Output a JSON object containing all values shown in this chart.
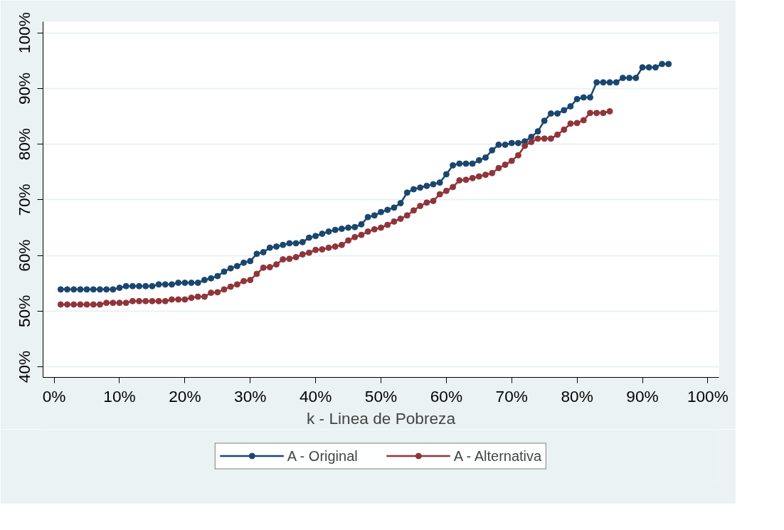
{
  "chart_data": {
    "type": "line",
    "xlabel": "k - Linea de Pobreza",
    "marker": "circle",
    "line_style": "solid",
    "grid": "y",
    "legend": "bottom",
    "xlim": [
      -1.7,
      101.7
    ],
    "ylim": [
      38.1,
      102
    ],
    "xticks": [
      {
        "value": 0,
        "label": "0%"
      },
      {
        "value": 10,
        "label": "10%"
      },
      {
        "value": 20,
        "label": "20%"
      },
      {
        "value": 30,
        "label": "30%"
      },
      {
        "value": 40,
        "label": "40%"
      },
      {
        "value": 50,
        "label": "50%"
      },
      {
        "value": 60,
        "label": "60%"
      },
      {
        "value": 70,
        "label": "70%"
      },
      {
        "value": 80,
        "label": "80%"
      },
      {
        "value": 90,
        "label": "90%"
      },
      {
        "value": 100,
        "label": "100%"
      }
    ],
    "yticks": [
      {
        "value": 40,
        "label": "40%"
      },
      {
        "value": 50,
        "label": "50%"
      },
      {
        "value": 60,
        "label": "60%"
      },
      {
        "value": 70,
        "label": "70%"
      },
      {
        "value": 80,
        "label": "80%"
      },
      {
        "value": 90,
        "label": "90%"
      },
      {
        "value": 100,
        "label": "100%"
      }
    ],
    "series": [
      {
        "name": "A - Original",
        "color": "#1a476f",
        "x": [
          1,
          2,
          3,
          4,
          5,
          6,
          7,
          8,
          9,
          10,
          11,
          12,
          13,
          14,
          15,
          16,
          17,
          18,
          19,
          20,
          21,
          22,
          23,
          24,
          25,
          26,
          27,
          28,
          29,
          30,
          31,
          32,
          33,
          34,
          35,
          36,
          37,
          38,
          39,
          40,
          41,
          42,
          43,
          44,
          45,
          46,
          47,
          48,
          49,
          50,
          51,
          52,
          53,
          54,
          55,
          56,
          57,
          58,
          59,
          60,
          61,
          62,
          63,
          64,
          65,
          66,
          67,
          68,
          69,
          70,
          71,
          72,
          73,
          74,
          75,
          76,
          77,
          78,
          79,
          80,
          81,
          82,
          83,
          84,
          85,
          86,
          87,
          88,
          89,
          90,
          91,
          92,
          93,
          94
        ],
        "values": [
          53.9,
          53.9,
          53.9,
          53.9,
          53.9,
          53.9,
          53.9,
          53.9,
          53.9,
          54.2,
          54.5,
          54.5,
          54.5,
          54.5,
          54.5,
          54.8,
          54.8,
          54.8,
          55.1,
          55.1,
          55.1,
          55.1,
          55.6,
          55.9,
          56.3,
          57.1,
          57.7,
          58.1,
          58.7,
          59.0,
          60.3,
          60.6,
          61.4,
          61.6,
          61.9,
          62.2,
          62.2,
          62.4,
          63.2,
          63.5,
          63.9,
          64.3,
          64.6,
          64.8,
          65.0,
          65.1,
          65.6,
          66.9,
          67.2,
          67.8,
          68.2,
          68.6,
          69.4,
          71.3,
          71.9,
          72.2,
          72.5,
          72.8,
          73.1,
          74.6,
          76.2,
          76.5,
          76.5,
          76.5,
          77.1,
          77.6,
          78.9,
          79.9,
          79.9,
          80.2,
          80.2,
          80.5,
          81.3,
          82.3,
          84.2,
          85.5,
          85.5,
          86.1,
          86.8,
          88.1,
          88.4,
          88.4,
          91.1,
          91.1,
          91.1,
          91.1,
          91.9,
          91.9,
          91.9,
          93.8,
          93.8,
          93.8,
          94.4,
          94.4
        ]
      },
      {
        "name": "A - Alternativa",
        "color": "#90353b",
        "x": [
          1,
          2,
          3,
          4,
          5,
          6,
          7,
          8,
          9,
          10,
          11,
          12,
          13,
          14,
          15,
          16,
          17,
          18,
          19,
          20,
          21,
          22,
          23,
          24,
          25,
          26,
          27,
          28,
          29,
          30,
          31,
          32,
          33,
          34,
          35,
          36,
          37,
          38,
          39,
          40,
          41,
          42,
          43,
          44,
          45,
          46,
          47,
          48,
          49,
          50,
          51,
          52,
          53,
          54,
          55,
          56,
          57,
          58,
          59,
          60,
          61,
          62,
          63,
          64,
          65,
          66,
          67,
          68,
          69,
          70,
          71,
          72,
          73,
          74,
          75,
          76,
          77,
          78,
          79,
          80,
          81,
          82,
          83,
          84,
          85
        ],
        "values": [
          51.2,
          51.2,
          51.2,
          51.2,
          51.2,
          51.2,
          51.2,
          51.5,
          51.5,
          51.5,
          51.5,
          51.8,
          51.8,
          51.8,
          51.8,
          51.8,
          51.8,
          52.1,
          52.1,
          52.1,
          52.4,
          52.6,
          52.6,
          53.3,
          53.4,
          53.9,
          54.4,
          54.8,
          55.4,
          55.6,
          56.7,
          57.8,
          57.9,
          58.4,
          59.3,
          59.4,
          59.7,
          60.2,
          60.5,
          61.0,
          61.1,
          61.4,
          61.6,
          61.9,
          62.7,
          63.3,
          63.7,
          64.3,
          64.7,
          65.0,
          65.5,
          66.1,
          66.6,
          67.2,
          68.1,
          68.9,
          69.5,
          69.8,
          71.0,
          71.6,
          72.3,
          73.5,
          73.6,
          73.9,
          74.2,
          74.5,
          74.8,
          75.7,
          76.3,
          77.0,
          78.0,
          79.7,
          80.4,
          81.0,
          81.0,
          81.0,
          81.7,
          82.6,
          83.7,
          83.8,
          84.3,
          85.6,
          85.6,
          85.6,
          85.9
        ]
      }
    ]
  }
}
